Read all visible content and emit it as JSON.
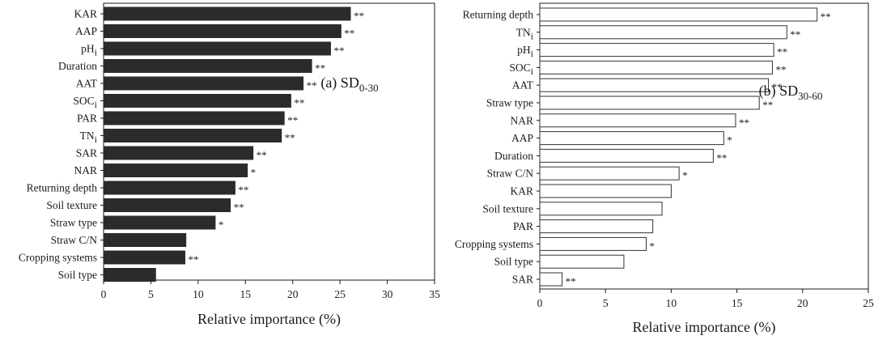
{
  "chart_data": [
    {
      "type": "bar",
      "orientation": "horizontal",
      "panel_label": "(a) SD",
      "panel_subscript": "0-30",
      "xlabel": "Relative importance (%)",
      "xlim": [
        0,
        35
      ],
      "xticks": [
        0,
        5,
        10,
        15,
        20,
        25,
        30,
        35
      ],
      "bar_color": "#2b2b2b",
      "bar_stroke": "#2b2b2b",
      "categories": [
        {
          "name": "KAR",
          "sub": "",
          "value": 26.1,
          "sig": "**"
        },
        {
          "name": "AAP",
          "sub": "",
          "value": 25.1,
          "sig": "**"
        },
        {
          "name": "pH",
          "sub": "i",
          "value": 24.0,
          "sig": "**"
        },
        {
          "name": "Duration",
          "sub": "",
          "value": 22.0,
          "sig": "**"
        },
        {
          "name": "AAT",
          "sub": "",
          "value": 21.1,
          "sig": "**"
        },
        {
          "name": "SOC",
          "sub": "i",
          "value": 19.8,
          "sig": "**"
        },
        {
          "name": "PAR",
          "sub": "",
          "value": 19.1,
          "sig": "**"
        },
        {
          "name": "TN",
          "sub": "i",
          "value": 18.8,
          "sig": "**"
        },
        {
          "name": "SAR",
          "sub": "",
          "value": 15.8,
          "sig": "**"
        },
        {
          "name": "NAR",
          "sub": "",
          "value": 15.2,
          "sig": "*"
        },
        {
          "name": "Returning depth",
          "sub": "",
          "value": 13.9,
          "sig": "**"
        },
        {
          "name": "Soil texture",
          "sub": "",
          "value": 13.4,
          "sig": "**"
        },
        {
          "name": "Straw type",
          "sub": "",
          "value": 11.8,
          "sig": "*"
        },
        {
          "name": "Straw C/N",
          "sub": "",
          "value": 8.7,
          "sig": ""
        },
        {
          "name": "Cropping systems",
          "sub": "",
          "value": 8.6,
          "sig": "**"
        },
        {
          "name": "Soil type",
          "sub": "",
          "value": 5.5,
          "sig": ""
        }
      ]
    },
    {
      "type": "bar",
      "orientation": "horizontal",
      "panel_label": "(b) SD",
      "panel_subscript": "30-60",
      "xlabel": "Relative importance (%)",
      "xlim": [
        0,
        25
      ],
      "xticks": [
        0,
        5,
        10,
        15,
        20,
        25
      ],
      "bar_color": "#ffffff",
      "bar_stroke": "#333333",
      "categories": [
        {
          "name": "Returning depth",
          "sub": "",
          "value": 21.1,
          "sig": "**"
        },
        {
          "name": "TN",
          "sub": "i",
          "value": 18.8,
          "sig": "**"
        },
        {
          "name": "pH",
          "sub": "i",
          "value": 17.8,
          "sig": "**"
        },
        {
          "name": "SOC",
          "sub": "i",
          "value": 17.7,
          "sig": "**"
        },
        {
          "name": "AAT",
          "sub": "",
          "value": 17.4,
          "sig": "**"
        },
        {
          "name": "Straw type",
          "sub": "",
          "value": 16.7,
          "sig": "**"
        },
        {
          "name": "NAR",
          "sub": "",
          "value": 14.9,
          "sig": "**"
        },
        {
          "name": "AAP",
          "sub": "",
          "value": 14.0,
          "sig": "*"
        },
        {
          "name": "Duration",
          "sub": "",
          "value": 13.2,
          "sig": "**"
        },
        {
          "name": "Straw C/N",
          "sub": "",
          "value": 10.6,
          "sig": "*"
        },
        {
          "name": "KAR",
          "sub": "",
          "value": 10.0,
          "sig": ""
        },
        {
          "name": "Soil texture",
          "sub": "",
          "value": 9.3,
          "sig": ""
        },
        {
          "name": "PAR",
          "sub": "",
          "value": 8.6,
          "sig": ""
        },
        {
          "name": "Cropping systems",
          "sub": "",
          "value": 8.1,
          "sig": "*"
        },
        {
          "name": "Soil type",
          "sub": "",
          "value": 6.4,
          "sig": ""
        },
        {
          "name": "SAR",
          "sub": "",
          "value": 1.7,
          "sig": "**"
        }
      ]
    }
  ]
}
